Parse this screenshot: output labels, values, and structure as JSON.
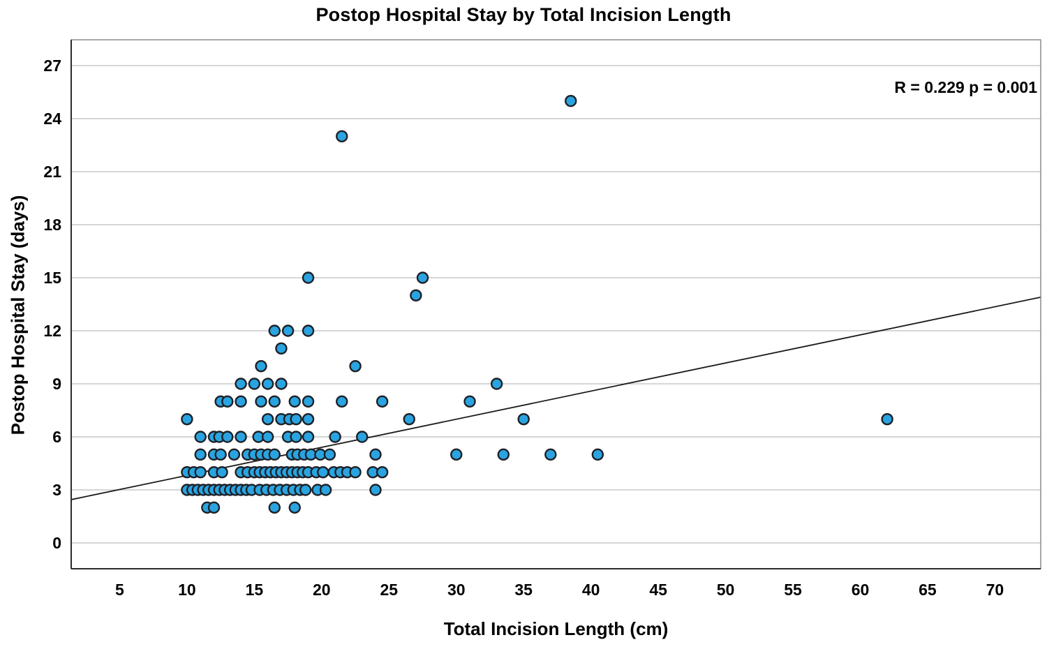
{
  "chart_data": {
    "type": "scatter",
    "title": "Postop Hospital Stay by Total Incision Length",
    "xlabel": "Total Incision Length (cm)",
    "ylabel": "Postop Hospital Stay (days)",
    "annotation": {
      "text": "R = 0.229 p = 0.001",
      "position": "top-right"
    },
    "x_ticks": [
      5,
      10,
      15,
      20,
      25,
      30,
      35,
      40,
      45,
      50,
      55,
      60,
      65,
      70
    ],
    "y_ticks": [
      0,
      3,
      6,
      9,
      12,
      15,
      18,
      21,
      24,
      27
    ],
    "x_range": [
      1.4,
      73.4
    ],
    "y_range": [
      -1.46,
      28.46
    ],
    "grid": "horizontal-only",
    "legend": "none",
    "trend_line": {
      "x1": 1.4,
      "y1": 2.45,
      "x2": 73.4,
      "y2": 13.9
    },
    "points": [
      [
        38.5,
        25
      ],
      [
        21.5,
        23
      ],
      [
        19,
        15
      ],
      [
        27.5,
        15
      ],
      [
        27,
        14
      ],
      [
        16.5,
        12
      ],
      [
        17.5,
        12
      ],
      [
        19,
        12
      ],
      [
        17,
        11
      ],
      [
        15.5,
        10
      ],
      [
        22.5,
        10
      ],
      [
        14,
        9
      ],
      [
        15,
        9
      ],
      [
        16,
        9
      ],
      [
        17,
        9
      ],
      [
        33,
        9
      ],
      [
        12.5,
        8
      ],
      [
        13,
        8
      ],
      [
        14,
        8
      ],
      [
        15.5,
        8
      ],
      [
        16.5,
        8
      ],
      [
        18,
        8
      ],
      [
        19,
        8
      ],
      [
        21.5,
        8
      ],
      [
        24.5,
        8
      ],
      [
        31,
        8
      ],
      [
        10,
        7
      ],
      [
        16,
        7
      ],
      [
        17,
        7
      ],
      [
        17.6,
        7
      ],
      [
        18.1,
        7
      ],
      [
        19,
        7
      ],
      [
        26.5,
        7
      ],
      [
        35,
        7
      ],
      [
        62,
        7
      ],
      [
        11,
        6
      ],
      [
        12,
        6
      ],
      [
        12.4,
        6
      ],
      [
        13,
        6
      ],
      [
        14,
        6
      ],
      [
        15.3,
        6
      ],
      [
        16,
        6
      ],
      [
        17.5,
        6
      ],
      [
        18.1,
        6
      ],
      [
        19,
        6
      ],
      [
        21,
        6
      ],
      [
        23,
        6
      ],
      [
        11,
        5
      ],
      [
        12,
        5
      ],
      [
        12.5,
        5
      ],
      [
        13.5,
        5
      ],
      [
        14.5,
        5
      ],
      [
        15,
        5
      ],
      [
        15.5,
        5
      ],
      [
        16,
        5
      ],
      [
        16.5,
        5
      ],
      [
        17.8,
        5
      ],
      [
        18.2,
        5
      ],
      [
        18.7,
        5
      ],
      [
        19.2,
        5
      ],
      [
        19.9,
        5
      ],
      [
        20.6,
        5
      ],
      [
        24,
        5
      ],
      [
        30,
        5
      ],
      [
        33.5,
        5
      ],
      [
        37,
        5
      ],
      [
        40.5,
        5
      ],
      [
        10,
        4
      ],
      [
        10.5,
        4
      ],
      [
        11,
        4
      ],
      [
        12,
        4
      ],
      [
        12.6,
        4
      ],
      [
        14,
        4
      ],
      [
        14.5,
        4
      ],
      [
        15,
        4
      ],
      [
        15.4,
        4
      ],
      [
        15.8,
        4
      ],
      [
        16.2,
        4
      ],
      [
        16.6,
        4
      ],
      [
        17,
        4
      ],
      [
        17.4,
        4
      ],
      [
        17.8,
        4
      ],
      [
        18.2,
        4
      ],
      [
        18.6,
        4
      ],
      [
        19,
        4
      ],
      [
        19.6,
        4
      ],
      [
        20.1,
        4
      ],
      [
        20.9,
        4
      ],
      [
        21.4,
        4
      ],
      [
        21.9,
        4
      ],
      [
        22.5,
        4
      ],
      [
        23.8,
        4
      ],
      [
        24.5,
        4
      ],
      [
        10,
        3
      ],
      [
        10.4,
        3
      ],
      [
        10.8,
        3
      ],
      [
        11.2,
        3
      ],
      [
        11.6,
        3
      ],
      [
        12,
        3
      ],
      [
        12.4,
        3
      ],
      [
        12.8,
        3
      ],
      [
        13.2,
        3
      ],
      [
        13.6,
        3
      ],
      [
        14,
        3
      ],
      [
        14.4,
        3
      ],
      [
        14.8,
        3
      ],
      [
        15.4,
        3
      ],
      [
        15.9,
        3
      ],
      [
        16.4,
        3
      ],
      [
        16.9,
        3
      ],
      [
        17.4,
        3
      ],
      [
        17.9,
        3
      ],
      [
        18.4,
        3
      ],
      [
        18.8,
        3
      ],
      [
        19.7,
        3
      ],
      [
        20.3,
        3
      ],
      [
        24,
        3
      ],
      [
        11.5,
        2
      ],
      [
        12,
        2
      ],
      [
        16.5,
        2
      ],
      [
        18,
        2
      ]
    ],
    "colors": {
      "point_fill": "#29A4E0",
      "point_edge": "#1E2026",
      "grid": "#C9C9C9",
      "frame": "#7A7A7A",
      "axis": "#2B2B2B",
      "trend": "#1A1A1A",
      "text": "#000000"
    }
  }
}
